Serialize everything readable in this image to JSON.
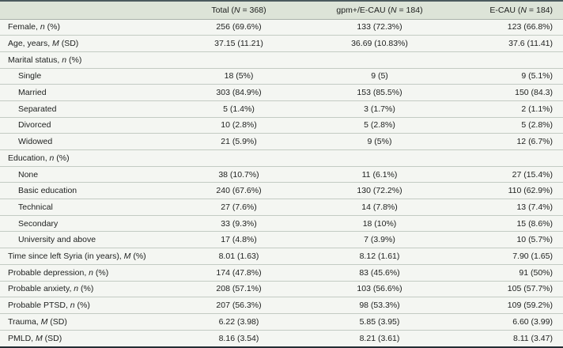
{
  "table": {
    "columns": [
      "",
      "Total (N = 368)",
      "gpm+/E-CAU (N = 184)",
      "E-CAU (N = 184)"
    ],
    "rows": [
      {
        "label": "Female, n (%)",
        "indent": false,
        "section": false,
        "values": [
          "256 (69.6%)",
          "133 (72.3%)",
          "123 (66.8%)"
        ]
      },
      {
        "label": "Age, years, M (SD)",
        "indent": false,
        "section": false,
        "values": [
          "37.15 (11.21)",
          "36.69 (10.83%)",
          "37.6 (11.41)"
        ]
      },
      {
        "label": "Marital status, n (%)",
        "indent": false,
        "section": true,
        "values": [
          "",
          "",
          ""
        ]
      },
      {
        "label": "Single",
        "indent": true,
        "section": false,
        "values": [
          "18 (5%)",
          "9 (5)",
          "9 (5.1%)"
        ]
      },
      {
        "label": "Married",
        "indent": true,
        "section": false,
        "values": [
          "303 (84.9%)",
          "153 (85.5%)",
          "150 (84.3)"
        ]
      },
      {
        "label": "Separated",
        "indent": true,
        "section": false,
        "values": [
          "5 (1.4%)",
          "3 (1.7%)",
          "2 (1.1%)"
        ]
      },
      {
        "label": "Divorced",
        "indent": true,
        "section": false,
        "values": [
          "10 (2.8%)",
          "5 (2.8%)",
          "5 (2.8%)"
        ]
      },
      {
        "label": "Widowed",
        "indent": true,
        "section": false,
        "values": [
          "21 (5.9%)",
          "9 (5%)",
          "12 (6.7%)"
        ]
      },
      {
        "label": "Education, n (%)",
        "indent": false,
        "section": true,
        "values": [
          "",
          "",
          ""
        ]
      },
      {
        "label": "None",
        "indent": true,
        "section": false,
        "values": [
          "38 (10.7%)",
          "11 (6.1%)",
          "27 (15.4%)"
        ]
      },
      {
        "label": "Basic education",
        "indent": true,
        "section": false,
        "values": [
          "240 (67.6%)",
          "130 (72.2%)",
          "110 (62.9%)"
        ]
      },
      {
        "label": "Technical",
        "indent": true,
        "section": false,
        "values": [
          "27 (7.6%)",
          "14 (7.8%)",
          "13 (7.4%)"
        ]
      },
      {
        "label": "Secondary",
        "indent": true,
        "section": false,
        "values": [
          "33 (9.3%)",
          "18 (10%)",
          "15 (8.6%)"
        ]
      },
      {
        "label": "University and above",
        "indent": true,
        "section": false,
        "values": [
          "17 (4.8%)",
          "7 (3.9%)",
          "10 (5.7%)"
        ]
      },
      {
        "label": "Time since left Syria (in years), M (%)",
        "indent": false,
        "section": false,
        "values": [
          "8.01 (1.63)",
          "8.12 (1.61)",
          "7.90 (1.65)"
        ]
      },
      {
        "label": "Probable depression, n (%)",
        "indent": false,
        "section": false,
        "values": [
          "174 (47.8%)",
          "83 (45.6%)",
          "91 (50%)"
        ]
      },
      {
        "label": "Probable anxiety, n (%)",
        "indent": false,
        "section": false,
        "values": [
          "208 (57.1%)",
          "103 (56.6%)",
          "105 (57.7%)"
        ]
      },
      {
        "label": "Probable PTSD, n (%)",
        "indent": false,
        "section": false,
        "values": [
          "207 (56.3%)",
          "98 (53.3%)",
          "109 (59.2%)"
        ]
      },
      {
        "label": "Trauma, M (SD)",
        "indent": false,
        "section": false,
        "values": [
          "6.22 (3.98)",
          "5.85 (3.95)",
          "6.60 (3.99)"
        ]
      },
      {
        "label": "PMLD, M (SD)",
        "indent": false,
        "section": false,
        "values": [
          "8.16 (3.54)",
          "8.21 (3.61)",
          "8.11 (3.47)"
        ]
      }
    ],
    "colors": {
      "header_bg": "#dde4d8",
      "row_bg": "#f4f6f2",
      "separator": "#a9b2aa",
      "top_border": "#4b5a5e",
      "bottom_border": "#232e33",
      "text": "#1d1f1e"
    }
  }
}
